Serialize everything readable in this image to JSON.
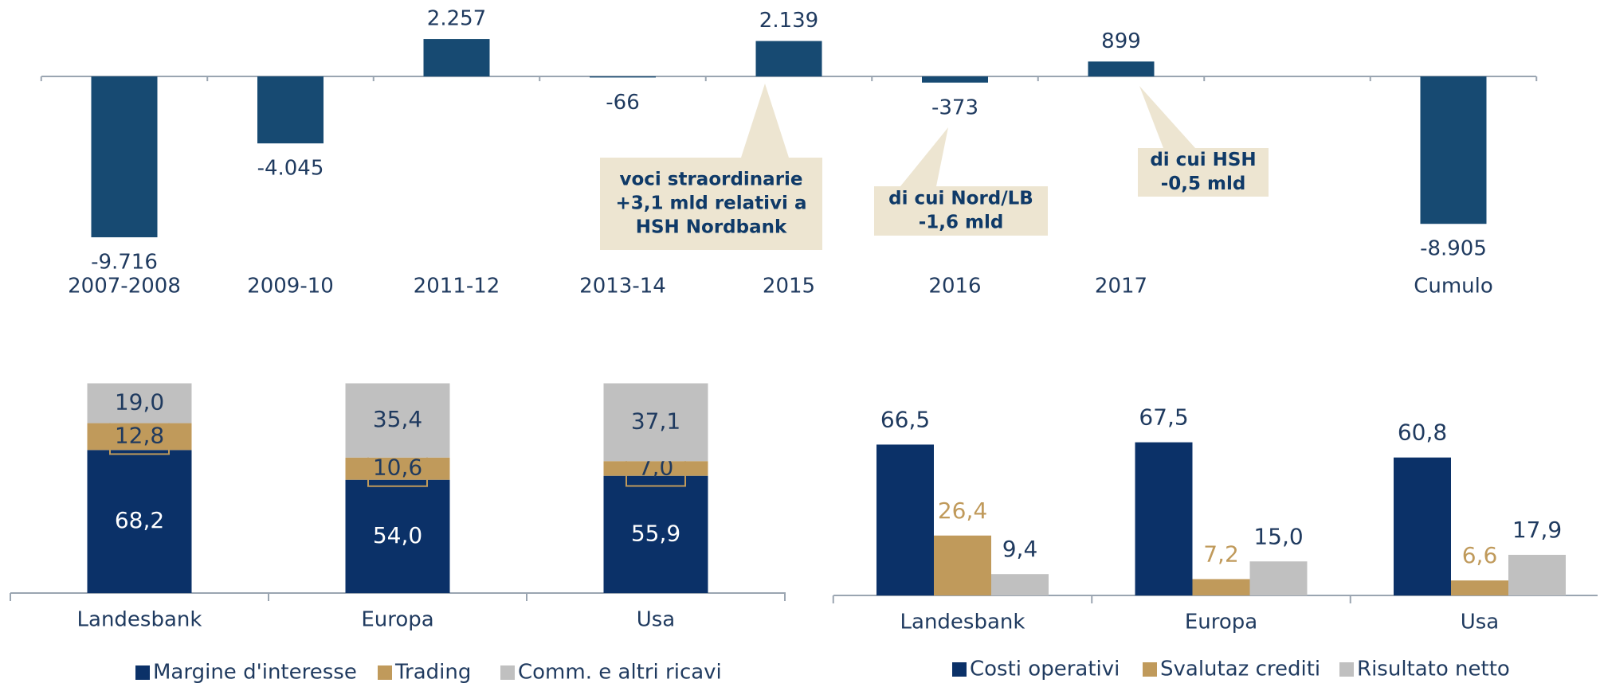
{
  "chart_data": [
    {
      "type": "bar",
      "categories": [
        "2007-2008",
        "2009-10",
        "2011-12",
        "2013-14",
        "2015",
        "2016",
        "2017",
        null,
        "Cumulo"
      ],
      "values": [
        -9716,
        -4045,
        2257,
        -66,
        2139,
        -373,
        899,
        null,
        -8905
      ],
      "value_labels": [
        "-9.716",
        "-4.045",
        "2.257",
        "-66",
        "2.139",
        "-373",
        "899",
        null,
        "-8.905"
      ],
      "color": "#174a72",
      "ylim": [
        -10000,
        2500
      ],
      "annotations": [
        {
          "lines": [
            "voci straordinarie",
            "+3,1 mld relativi a",
            "HSH Nordbank"
          ]
        },
        {
          "lines": [
            "di cui Nord/LB",
            "-1,6 mld"
          ]
        },
        {
          "lines": [
            "di cui HSH",
            "-0,5 mld"
          ]
        }
      ]
    },
    {
      "type": "stacked_bar",
      "categories": [
        "Landesbank",
        "Europa",
        "Usa"
      ],
      "ylim": [
        0,
        100
      ],
      "series": [
        {
          "name": "Margine d'interesse",
          "color": "#0b3168",
          "values": [
            68.2,
            54.0,
            55.9
          ],
          "value_labels": [
            "68,2",
            "54,0",
            "55,9"
          ]
        },
        {
          "name": "Trading",
          "color": "#c09a5b",
          "values": [
            12.8,
            10.6,
            7.0
          ],
          "value_labels": [
            "12,8",
            "10,6",
            "7,0"
          ]
        },
        {
          "name": "Comm. e altri ricavi",
          "color": "#c0c0c0",
          "values": [
            19.0,
            35.4,
            37.1
          ],
          "value_labels": [
            "19,0",
            "35,4",
            "37,1"
          ]
        }
      ]
    },
    {
      "type": "grouped_bar",
      "categories": [
        "Landesbank",
        "Europa",
        "Usa"
      ],
      "ylim": [
        0,
        80
      ],
      "series": [
        {
          "name": "Costi operativi",
          "color": "#0b3168",
          "values": [
            66.5,
            67.5,
            60.8
          ],
          "value_labels": [
            "66,5",
            "67,5",
            "60,8"
          ]
        },
        {
          "name": "Svalutaz crediti",
          "color": "#c09a5b",
          "values": [
            26.4,
            7.2,
            6.6
          ],
          "value_labels": [
            "26,4",
            "7,2",
            "6,6"
          ]
        },
        {
          "name": "Risultato netto",
          "color": "#c0c0c0",
          "values": [
            9.4,
            15.0,
            17.9
          ],
          "value_labels": [
            "9,4",
            "15,0",
            "17,9"
          ]
        }
      ]
    }
  ]
}
